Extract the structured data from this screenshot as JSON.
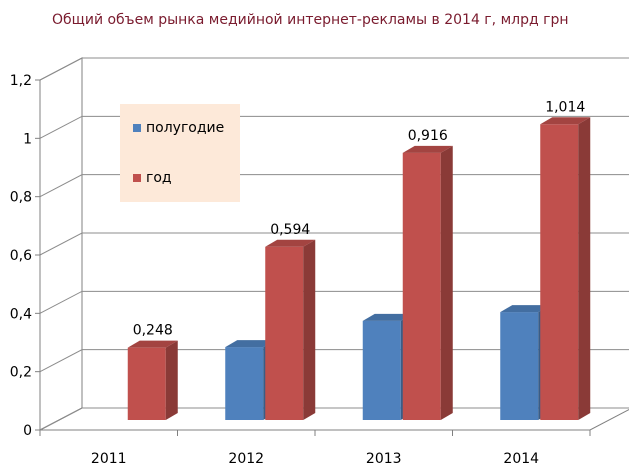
{
  "chart_data": {
    "type": "bar",
    "title": "Общий объем рынка медийной интернет-рекламы в 2014 г, млрд грн",
    "categories": [
      "2011",
      "2012",
      "2013",
      "2014"
    ],
    "series": [
      {
        "name": "полугодие",
        "values": [
          0,
          0.25,
          0.34,
          0.37
        ],
        "color": "#4f81bd"
      },
      {
        "name": "год",
        "values": [
          0.248,
          0.594,
          0.916,
          1.014
        ],
        "color": "#c0504d"
      }
    ],
    "data_labels": [
      {
        "series": "год",
        "category": "2011",
        "text": "0,248"
      },
      {
        "series": "год",
        "category": "2012",
        "text": "0,594"
      },
      {
        "series": "год",
        "category": "2013",
        "text": "0,916"
      },
      {
        "series": "год",
        "category": "2014",
        "text": "1,014"
      }
    ],
    "yticks": [
      "0",
      "0,2",
      "0,4",
      "0,6",
      "0,8",
      "1",
      "1,2"
    ],
    "ylim": [
      0,
      1.2
    ],
    "grid": true,
    "style": "3d-clustered-column",
    "legend_position": "top-left",
    "legend_background": "#fde9d9"
  }
}
